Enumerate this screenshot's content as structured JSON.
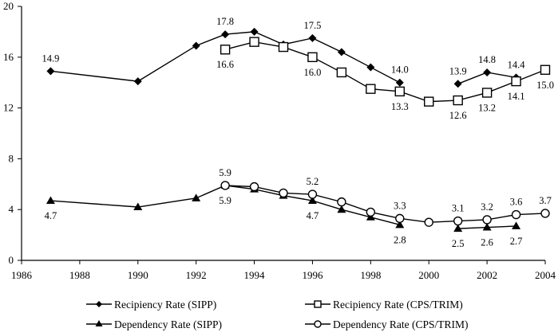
{
  "chart_data": {
    "type": "line",
    "title": "",
    "xlabel": "",
    "ylabel": "",
    "xlim": [
      1986,
      2004
    ],
    "ylim": [
      0,
      20
    ],
    "x_ticks": [
      1986,
      1988,
      1990,
      1992,
      1994,
      1996,
      1998,
      2000,
      2002,
      2004
    ],
    "y_ticks": [
      0,
      4,
      8,
      12,
      16,
      20
    ],
    "grid": false,
    "legend_position": "bottom",
    "series": [
      {
        "name": "Recipiency Rate (SIPP)",
        "marker": "diamond-filled",
        "segments": [
          [
            [
              1987,
              14.9
            ],
            [
              1990,
              14.1
            ],
            [
              1992,
              16.9
            ],
            [
              1993,
              17.8
            ],
            [
              1994,
              18.0
            ],
            [
              1995,
              17.0
            ],
            [
              1996,
              17.5
            ],
            [
              1997,
              16.4
            ],
            [
              1998,
              15.2
            ],
            [
              1999,
              14.0
            ]
          ],
          [
            [
              2001,
              13.9
            ],
            [
              2002,
              14.8
            ],
            [
              2003,
              14.4
            ]
          ]
        ],
        "labels": [
          {
            "x": 1987,
            "text": "14.9",
            "pos": "above"
          },
          {
            "x": 1993,
            "text": "17.8",
            "pos": "above"
          },
          {
            "x": 1996,
            "text": "17.5",
            "pos": "above"
          },
          {
            "x": 1999,
            "text": "14.0",
            "pos": "above"
          },
          {
            "x": 2001,
            "text": "13.9",
            "pos": "above"
          },
          {
            "x": 2002,
            "text": "14.8",
            "pos": "above"
          },
          {
            "x": 2003,
            "text": "14.4",
            "pos": "above"
          }
        ]
      },
      {
        "name": "Recipiency Rate (CPS/TRIM)",
        "marker": "square-open",
        "segments": [
          [
            [
              1993,
              16.6
            ],
            [
              1994,
              17.2
            ],
            [
              1995,
              16.8
            ],
            [
              1996,
              16.0
            ],
            [
              1997,
              14.8
            ],
            [
              1998,
              13.5
            ],
            [
              1999,
              13.3
            ],
            [
              2000,
              12.5
            ],
            [
              2001,
              12.6
            ],
            [
              2002,
              13.2
            ],
            [
              2003,
              14.1
            ],
            [
              2004,
              15.0
            ]
          ]
        ],
        "labels": [
          {
            "x": 1993,
            "text": "16.6",
            "pos": "below"
          },
          {
            "x": 1996,
            "text": "16.0",
            "pos": "below"
          },
          {
            "x": 1999,
            "text": "13.3",
            "pos": "below"
          },
          {
            "x": 2001,
            "text": "12.6",
            "pos": "below"
          },
          {
            "x": 2002,
            "text": "13.2",
            "pos": "below"
          },
          {
            "x": 2003,
            "text": "14.1",
            "pos": "below"
          },
          {
            "x": 2004,
            "text": "15.0",
            "pos": "below"
          }
        ]
      },
      {
        "name": "Dependency Rate (SIPP)",
        "marker": "triangle-filled",
        "segments": [
          [
            [
              1987,
              4.7
            ],
            [
              1990,
              4.2
            ],
            [
              1992,
              4.9
            ],
            [
              1993,
              5.9
            ],
            [
              1994,
              5.6
            ],
            [
              1995,
              5.1
            ],
            [
              1996,
              4.7
            ],
            [
              1997,
              4.0
            ],
            [
              1998,
              3.4
            ],
            [
              1999,
              2.8
            ]
          ],
          [
            [
              2001,
              2.5
            ],
            [
              2002,
              2.6
            ],
            [
              2003,
              2.7
            ]
          ]
        ],
        "labels": [
          {
            "x": 1987,
            "text": "4.7",
            "pos": "below"
          },
          {
            "x": 1993,
            "text": "5.9",
            "pos": "below"
          },
          {
            "x": 1996,
            "text": "4.7",
            "pos": "below"
          },
          {
            "x": 1999,
            "text": "2.8",
            "pos": "below"
          },
          {
            "x": 2001,
            "text": "2.5",
            "pos": "below"
          },
          {
            "x": 2002,
            "text": "2.6",
            "pos": "below"
          },
          {
            "x": 2003,
            "text": "2.7",
            "pos": "below"
          }
        ]
      },
      {
        "name": "Dependency Rate (CPS/TRIM)",
        "marker": "circle-open",
        "segments": [
          [
            [
              1993,
              5.9
            ],
            [
              1994,
              5.8
            ],
            [
              1995,
              5.3
            ],
            [
              1996,
              5.2
            ],
            [
              1997,
              4.6
            ],
            [
              1998,
              3.8
            ],
            [
              1999,
              3.3
            ],
            [
              2000,
              3.0
            ],
            [
              2001,
              3.1
            ],
            [
              2002,
              3.2
            ],
            [
              2003,
              3.6
            ],
            [
              2004,
              3.7
            ]
          ]
        ],
        "labels": [
          {
            "x": 1993,
            "text": "5.9",
            "pos": "above"
          },
          {
            "x": 1996,
            "text": "5.2",
            "pos": "above"
          },
          {
            "x": 1999,
            "text": "3.3",
            "pos": "above"
          },
          {
            "x": 2001,
            "text": "3.1",
            "pos": "above"
          },
          {
            "x": 2002,
            "text": "3.2",
            "pos": "above"
          },
          {
            "x": 2003,
            "text": "3.6",
            "pos": "above"
          },
          {
            "x": 2004,
            "text": "3.7",
            "pos": "above"
          }
        ]
      }
    ],
    "legend": [
      {
        "name": "Recipiency Rate (SIPP)",
        "marker": "diamond-filled"
      },
      {
        "name": "Recipiency Rate (CPS/TRIM)",
        "marker": "square-open"
      },
      {
        "name": "Dependency Rate (SIPP)",
        "marker": "triangle-filled"
      },
      {
        "name": "Dependency Rate (CPS/TRIM)",
        "marker": "circle-open"
      }
    ],
    "colors": {
      "line": "#000000",
      "background": "#ffffff"
    }
  }
}
